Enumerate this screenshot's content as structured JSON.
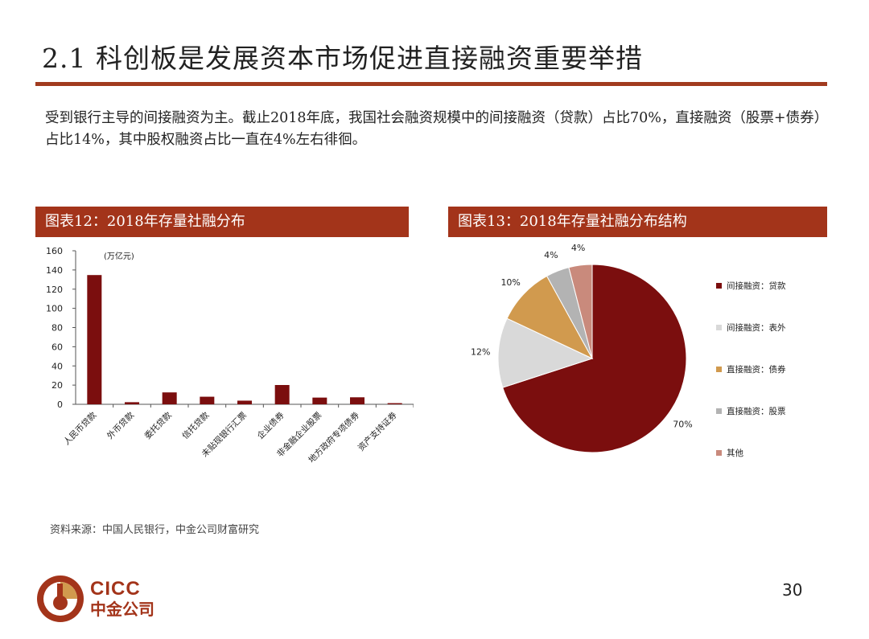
{
  "page": {
    "title": "2.1 科创板是发展资本市场促进直接融资重要举措",
    "intro": "受到银行主导的间接融资为主。截止2018年底，我国社会融资规模中的间接融资（贷款）占比70%，直接融资（股票+债券）占比14%，其中股权融资占比一直在4%左右徘徊。",
    "source": "资料来源：中国人民银行，中金公司财富研究",
    "page_number": "30",
    "logo_en": "CICC",
    "logo_cn": "中金公司",
    "brand_color": "#a3341a"
  },
  "chart_data": [
    {
      "type": "bar",
      "title": "图表12：2018年存量社融分布",
      "unit_label": "(万亿元)",
      "categories": [
        "人民币贷款",
        "外币贷款",
        "委托贷款",
        "信托贷款",
        "未贴现银行汇票",
        "企业债券",
        "非金融企业股票",
        "地方政府专项债券",
        "资产支持证券"
      ],
      "values": [
        134.7,
        2.2,
        12.4,
        7.9,
        3.8,
        20.1,
        7.0,
        7.3,
        1.2
      ],
      "ylim": [
        0,
        160
      ],
      "yticks": [
        0,
        20,
        40,
        60,
        80,
        100,
        120,
        140,
        160
      ],
      "ytick_labels": [
        "0",
        "20",
        "40",
        "60",
        "80",
        "100",
        "120",
        "140",
        "160"
      ],
      "bar_color": "#7b0e0e",
      "grid": false
    },
    {
      "type": "pie",
      "title": "图表13：2018年存量社融分布结构",
      "legend_position": "right",
      "slices": [
        {
          "label": "间接融资：贷款",
          "value": 70,
          "display": "70%",
          "color": "#7b0e0e"
        },
        {
          "label": "间接融资：表外",
          "value": 12,
          "display": "12%",
          "color": "#d9d9d9"
        },
        {
          "label": "直接融资：债券",
          "value": 10,
          "display": "10%",
          "color": "#d19a4e"
        },
        {
          "label": "直接融资：股票",
          "value": 4,
          "display": "4%",
          "color": "#b3b3b3"
        },
        {
          "label": "其他",
          "value": 4,
          "display": "4%",
          "color": "#c98a7c"
        }
      ]
    }
  ]
}
